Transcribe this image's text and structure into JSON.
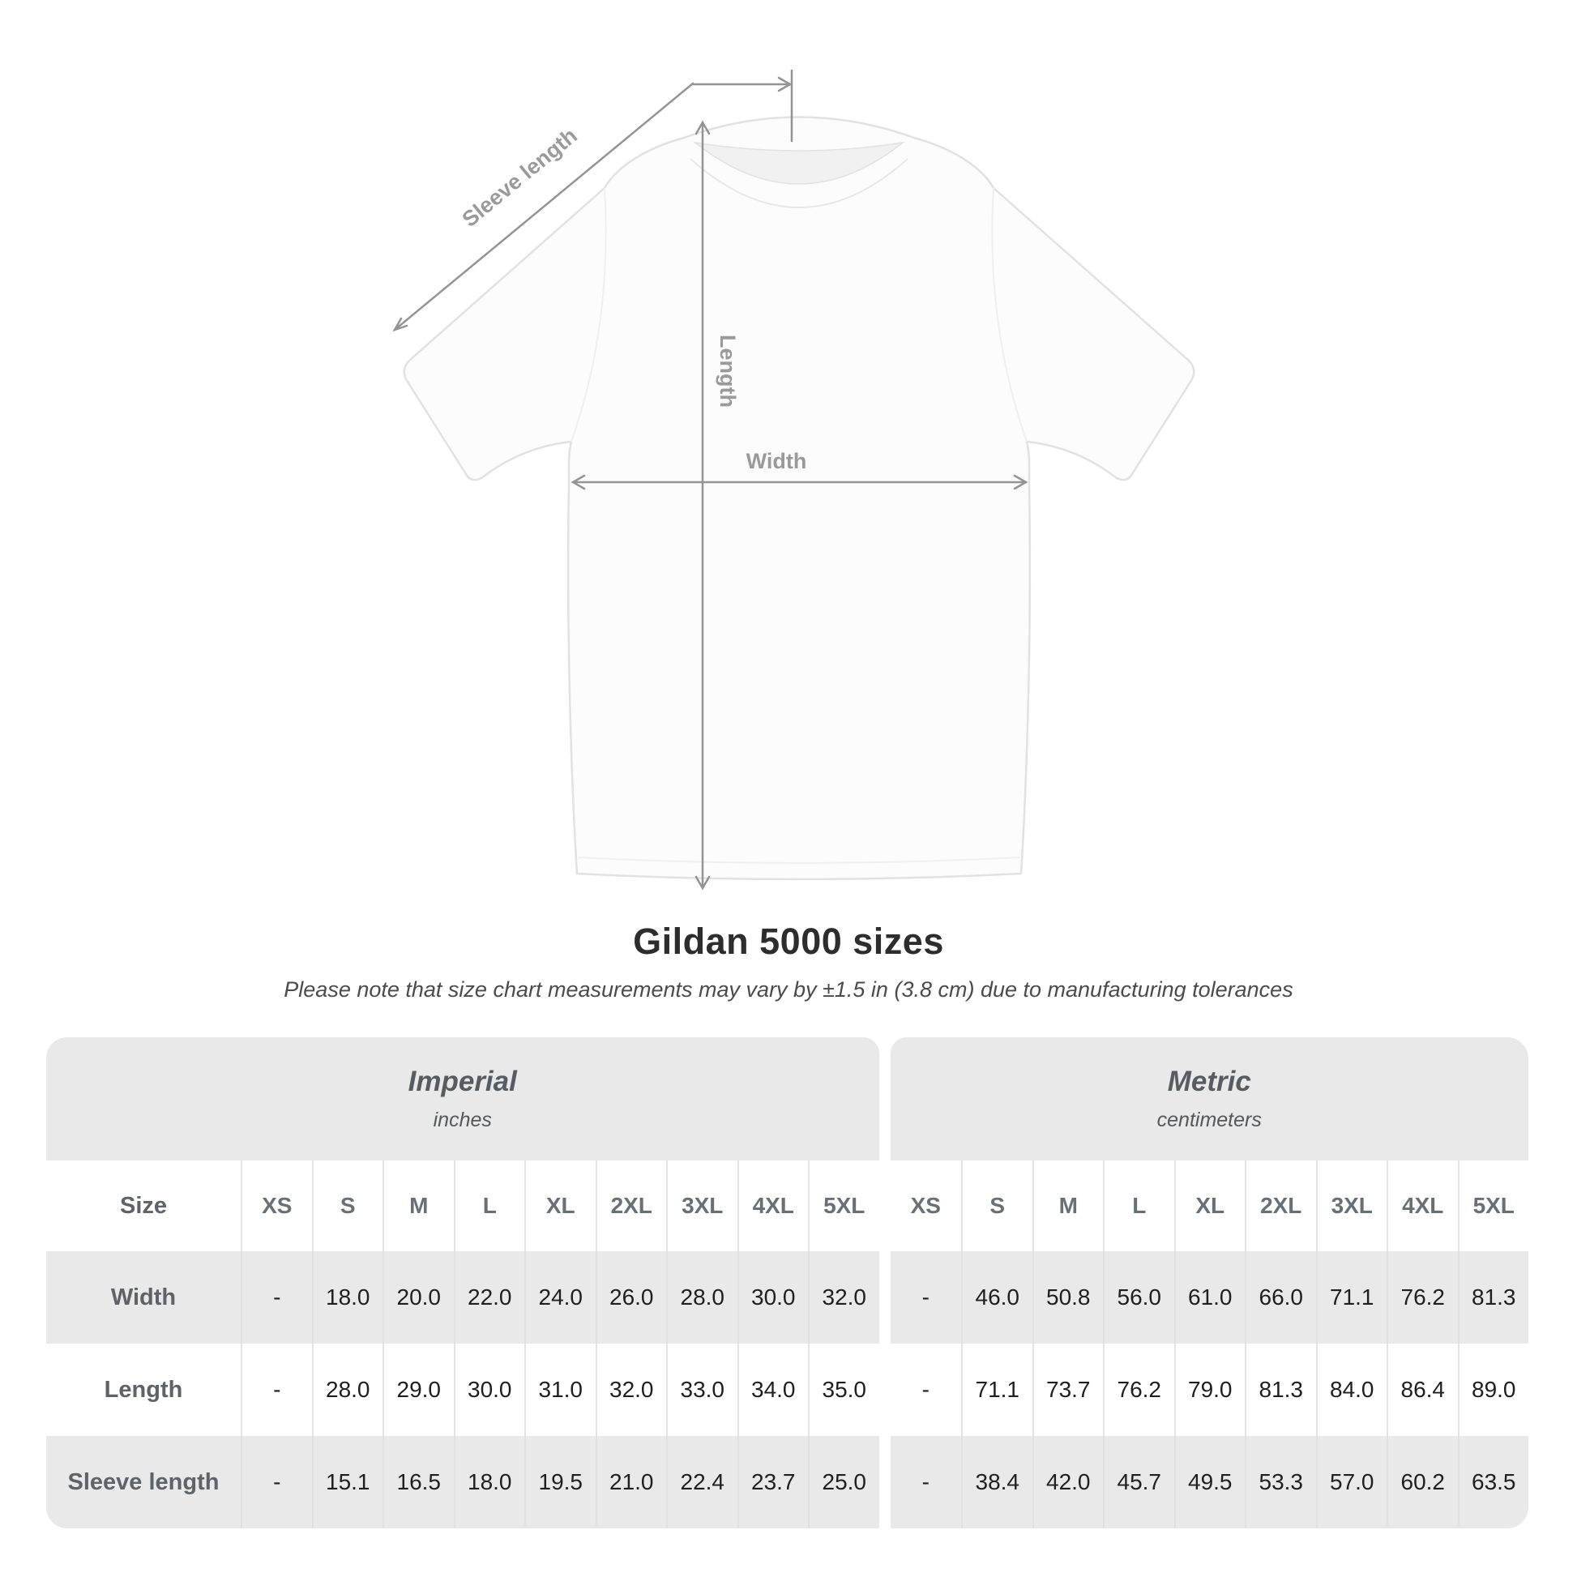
{
  "diagram": {
    "sleeve_length_label": "Sleeve length",
    "length_label": "Length",
    "width_label": "Width"
  },
  "header": {
    "title": "Gildan 5000 sizes",
    "subtitle": "Please note that size chart measurements may vary by ±1.5 in (3.8 cm) due to manufacturing tolerances"
  },
  "colors": {
    "table_gray": "#e9e9e9",
    "annotation_gray": "#9a9a9a",
    "line_gray": "#949494",
    "value_text": "#1f1f1f",
    "row_label_text": "#5d6368"
  },
  "chart_data": {
    "type": "table",
    "title": "Gildan 5000 sizes",
    "subtitle": "Please note that size chart measurements may vary by ±1.5 in (3.8 cm) due to manufacturing tolerances",
    "corner_label": "Size",
    "groups": [
      {
        "name": "Imperial",
        "unit": "inches"
      },
      {
        "name": "Metric",
        "unit": "centimeters"
      }
    ],
    "sizes": [
      "XS",
      "S",
      "M",
      "L",
      "XL",
      "2XL",
      "3XL",
      "4XL",
      "5XL"
    ],
    "rows": [
      {
        "label": "Width",
        "imperial": [
          "-",
          "18.0",
          "20.0",
          "22.0",
          "24.0",
          "26.0",
          "28.0",
          "30.0",
          "32.0"
        ],
        "metric": [
          "-",
          "46.0",
          "50.8",
          "56.0",
          "61.0",
          "66.0",
          "71.1",
          "76.2",
          "81.3"
        ]
      },
      {
        "label": "Length",
        "imperial": [
          "-",
          "28.0",
          "29.0",
          "30.0",
          "31.0",
          "32.0",
          "33.0",
          "34.0",
          "35.0"
        ],
        "metric": [
          "-",
          "71.1",
          "73.7",
          "76.2",
          "79.0",
          "81.3",
          "84.0",
          "86.4",
          "89.0"
        ]
      },
      {
        "label": "Sleeve length",
        "imperial": [
          "-",
          "15.1",
          "16.5",
          "18.0",
          "19.5",
          "21.0",
          "22.4",
          "23.7",
          "25.0"
        ],
        "metric": [
          "-",
          "38.4",
          "42.0",
          "45.7",
          "49.5",
          "53.3",
          "57.0",
          "60.2",
          "63.5"
        ]
      }
    ]
  }
}
